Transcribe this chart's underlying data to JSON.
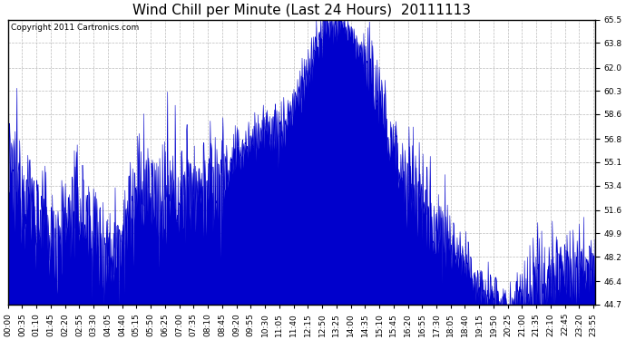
{
  "title": "Wind Chill per Minute (Last 24 Hours)  20111113",
  "copyright_text": "Copyright 2011 Cartronics.com",
  "line_color": "#0000cc",
  "fill_color": "#0000cc",
  "background_color": "#ffffff",
  "grid_color": "#bbbbbb",
  "yticks": [
    44.7,
    46.4,
    48.2,
    49.9,
    51.6,
    53.4,
    55.1,
    56.8,
    58.6,
    60.3,
    62.0,
    63.8,
    65.5
  ],
  "ymin": 44.7,
  "ymax": 65.5,
  "xtick_labels": [
    "00:00",
    "00:35",
    "01:10",
    "01:45",
    "02:20",
    "02:55",
    "03:30",
    "04:05",
    "04:40",
    "05:15",
    "05:50",
    "06:25",
    "07:00",
    "07:35",
    "08:10",
    "08:45",
    "09:20",
    "09:55",
    "10:30",
    "11:05",
    "11:40",
    "12:15",
    "12:50",
    "13:25",
    "14:00",
    "14:35",
    "15:10",
    "15:45",
    "16:20",
    "16:55",
    "17:30",
    "18:05",
    "18:40",
    "19:15",
    "19:50",
    "20:25",
    "21:00",
    "21:35",
    "22:10",
    "22:45",
    "23:20",
    "23:55"
  ],
  "title_fontsize": 11,
  "axis_fontsize": 6.5,
  "copyright_fontsize": 6.5
}
